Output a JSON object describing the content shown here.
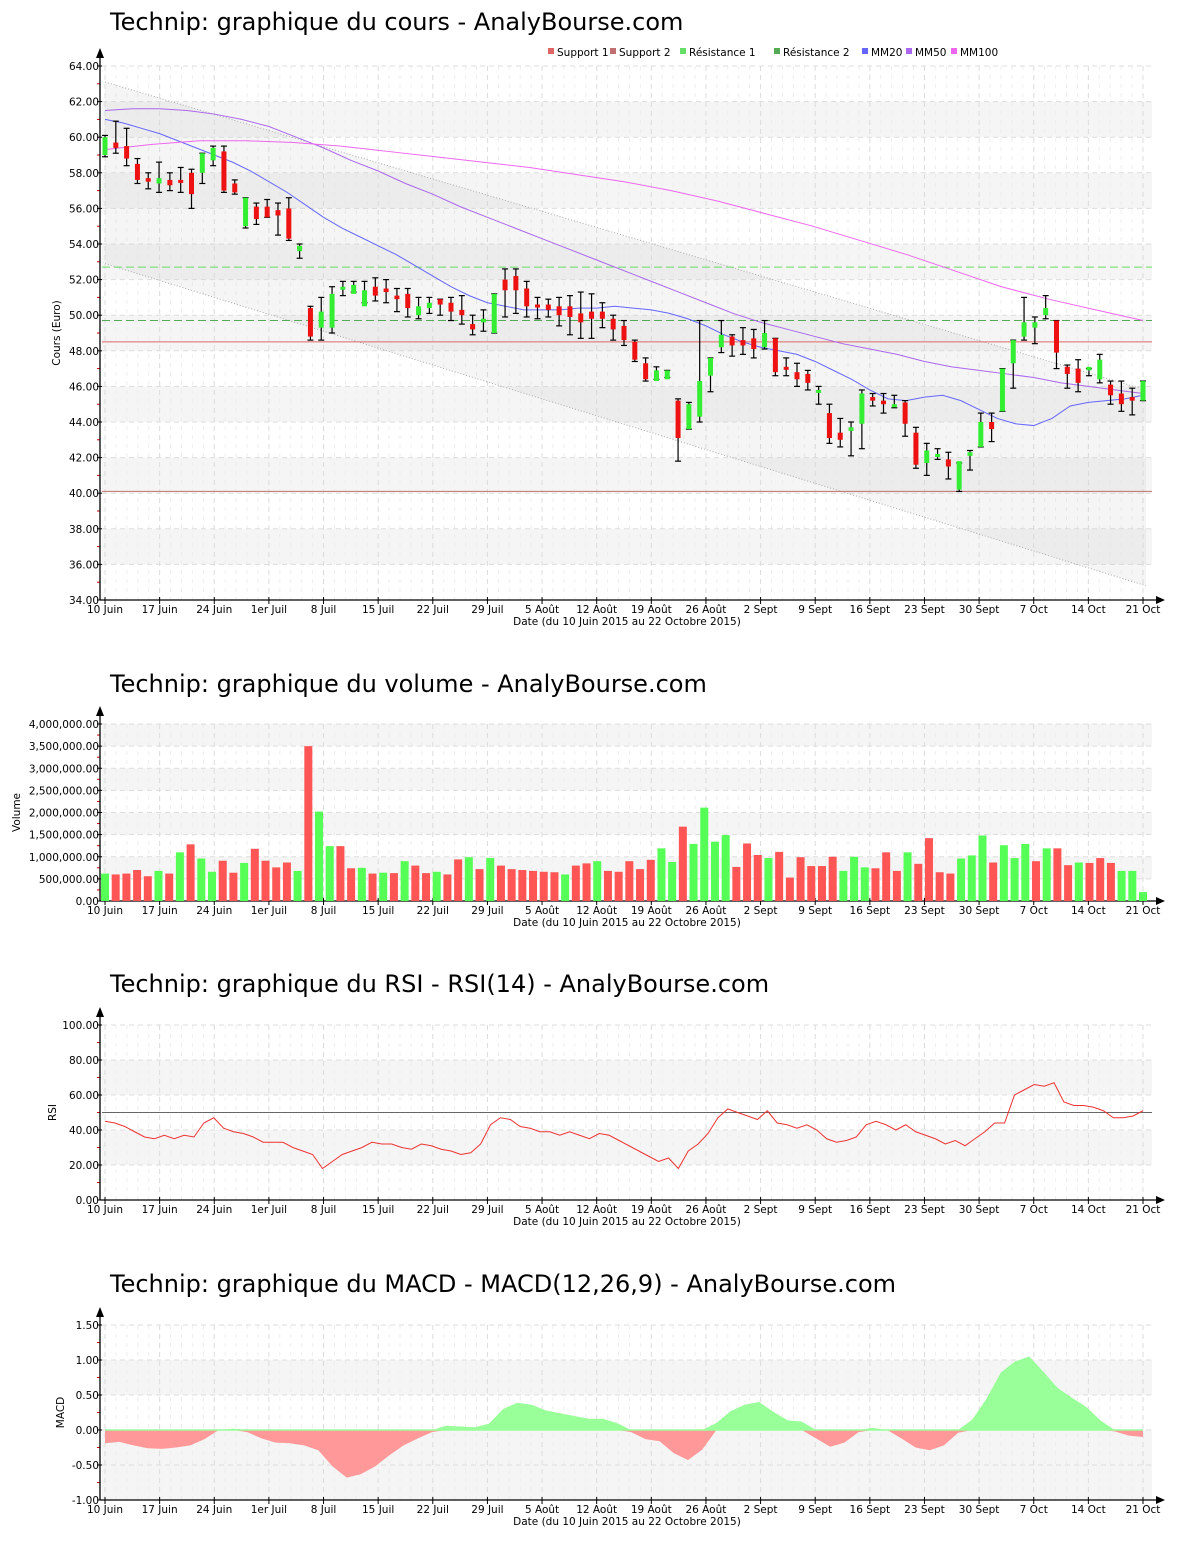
{
  "price_title": "Technip: graphique du cours - AnalyBourse.com",
  "volume_title": "Technip: graphique du volume - AnalyBourse.com",
  "rsi_title": "Technip: graphique du RSI - RSI(14) - AnalyBourse.com",
  "macd_title": "Technip: graphique du MACD - MACD(12,26,9) - AnalyBourse.com",
  "x_axis_label": "Date (du 10 Juin 2015 au 22 Octobre 2015)",
  "x_ticks": [
    "10 Juin",
    "17 Juin",
    "24 Juin",
    "1er Juil",
    "8 Juil",
    "15 Juil",
    "22 Juil",
    "29 Juil",
    "5 Août",
    "12 Août",
    "19 Août",
    "26 Août",
    "2 Sept",
    "9 Sept",
    "16 Sept",
    "23 Sept",
    "30 Sept",
    "7 Oct",
    "14 Oct",
    "21 Oct"
  ],
  "colors": {
    "up": "#33ee33",
    "down": "#ee1111",
    "vol_up": "#55ff55",
    "vol_down": "#ff5555",
    "support1": "#e06666",
    "support2": "#c07070",
    "resistance1": "#66dd66",
    "resistance2": "#55aa55",
    "mm20": "#6666ff",
    "mm50": "#aa66ee",
    "mm100": "#ee66ee",
    "rsi_line": "#ee3333",
    "macd_pos": "#99ff99",
    "macd_neg": "#ff9999"
  },
  "chart_data": [
    {
      "type": "candlestick",
      "title": "Technip: graphique du cours - AnalyBourse.com",
      "xlabel": "Date (du 10 Juin 2015 au 22 Octobre 2015)",
      "ylabel": "Cours (Euro)",
      "ylim": [
        34,
        64
      ],
      "yticks": [
        "64.00",
        "62.00",
        "60.00",
        "58.00",
        "56.00",
        "54.00",
        "52.00",
        "50.00",
        "48.00",
        "46.00",
        "44.00",
        "42.00",
        "40.00",
        "38.00",
        "36.00",
        "34.00"
      ],
      "legend": [
        "Support 1",
        "Support 2",
        "Résistance 1",
        "Résistance 2",
        "MM20",
        "MM50",
        "MM100"
      ],
      "levels": {
        "support1": 48.5,
        "support2": 40.1,
        "resistance1": 52.7,
        "resistance2": 49.7
      },
      "trend_channel": {
        "upper": [
          63.1,
          45.8
        ],
        "lower": [
          52.9,
          34.8
        ]
      },
      "candles": [
        [
          59.0,
          60.1,
          58.9,
          60.0
        ],
        [
          59.7,
          60.9,
          59.1,
          59.4
        ],
        [
          59.5,
          60.5,
          58.4,
          58.8
        ],
        [
          58.5,
          58.8,
          57.4,
          57.6
        ],
        [
          57.7,
          58.0,
          57.1,
          57.5
        ],
        [
          57.4,
          58.6,
          56.9,
          57.7
        ],
        [
          57.6,
          58.0,
          57.0,
          57.3
        ],
        [
          57.6,
          58.3,
          56.9,
          57.5
        ],
        [
          58.0,
          58.2,
          56.0,
          56.8
        ],
        [
          58.0,
          59.1,
          57.4,
          59.1
        ],
        [
          58.7,
          59.5,
          58.4,
          59.4
        ],
        [
          59.2,
          59.5,
          56.9,
          57.0
        ],
        [
          57.4,
          57.6,
          56.8,
          56.9
        ],
        [
          55.0,
          56.6,
          54.9,
          56.6
        ],
        [
          56.1,
          56.3,
          55.1,
          55.4
        ],
        [
          56.1,
          56.5,
          55.5,
          55.5
        ],
        [
          55.9,
          56.3,
          54.5,
          55.6
        ],
        [
          56.0,
          56.6,
          54.2,
          54.3
        ],
        [
          53.6,
          54.0,
          53.2,
          53.9
        ],
        [
          50.4,
          50.5,
          48.6,
          48.8
        ],
        [
          49.3,
          51.0,
          48.6,
          50.2
        ],
        [
          49.3,
          51.6,
          49.0,
          51.2
        ],
        [
          51.5,
          51.9,
          51.1,
          51.6
        ],
        [
          51.2,
          51.9,
          51.3,
          51.7
        ],
        [
          50.5,
          51.9,
          50.7,
          51.4
        ],
        [
          51.6,
          52.1,
          50.8,
          51.1
        ],
        [
          51.5,
          52.0,
          50.7,
          51.3
        ],
        [
          51.1,
          51.5,
          50.2,
          50.9
        ],
        [
          51.2,
          51.5,
          49.9,
          50.4
        ],
        [
          50.0,
          51.0,
          49.8,
          50.5
        ],
        [
          50.4,
          51.0,
          50.1,
          50.7
        ],
        [
          50.9,
          50.9,
          50.0,
          50.6
        ],
        [
          50.7,
          51.0,
          49.7,
          50.2
        ],
        [
          50.3,
          51.1,
          49.5,
          50.0
        ],
        [
          49.5,
          50.0,
          48.9,
          49.2
        ],
        [
          49.6,
          50.3,
          49.1,
          49.8
        ],
        [
          49.0,
          51.2,
          49.0,
          51.2
        ],
        [
          52.0,
          52.6,
          49.9,
          51.4
        ],
        [
          52.2,
          52.6,
          50.1,
          51.4
        ],
        [
          51.5,
          51.9,
          49.9,
          50.5
        ],
        [
          50.6,
          51.0,
          49.8,
          50.5
        ],
        [
          50.6,
          50.9,
          49.9,
          50.3
        ],
        [
          50.5,
          51.0,
          49.4,
          50.0
        ],
        [
          50.5,
          51.1,
          48.9,
          49.9
        ],
        [
          50.1,
          51.3,
          48.7,
          49.6
        ],
        [
          50.2,
          51.2,
          48.7,
          49.8
        ],
        [
          50.2,
          50.7,
          49.3,
          49.8
        ],
        [
          49.8,
          50.0,
          48.6,
          49.2
        ],
        [
          49.4,
          49.7,
          48.3,
          48.6
        ],
        [
          48.5,
          48.6,
          47.4,
          47.5
        ],
        [
          47.3,
          47.6,
          46.3,
          46.4
        ],
        [
          46.3,
          47.1,
          46.4,
          46.9
        ],
        [
          46.4,
          46.9,
          46.5,
          46.9
        ],
        [
          45.2,
          45.3,
          41.8,
          43.1
        ],
        [
          43.6,
          45.1,
          43.6,
          45.0
        ],
        [
          44.3,
          49.7,
          44.0,
          46.3
        ],
        [
          46.6,
          47.6,
          45.7,
          47.6
        ],
        [
          48.2,
          49.7,
          47.9,
          48.9
        ],
        [
          48.8,
          48.9,
          47.7,
          48.3
        ],
        [
          48.6,
          49.3,
          47.8,
          48.3
        ],
        [
          48.7,
          49.2,
          47.6,
          48.1
        ],
        [
          48.2,
          49.7,
          48.1,
          49.0
        ],
        [
          48.7,
          48.7,
          46.6,
          46.8
        ],
        [
          47.1,
          47.6,
          46.6,
          47.0
        ],
        [
          46.8,
          47.3,
          46.0,
          46.4
        ],
        [
          46.7,
          46.9,
          45.8,
          46.2
        ],
        [
          45.8,
          46.0,
          45.0,
          45.8
        ],
        [
          44.5,
          45.0,
          42.8,
          43.1
        ],
        [
          43.4,
          44.2,
          42.6,
          43.0
        ],
        [
          43.5,
          44.0,
          42.1,
          43.7
        ],
        [
          43.9,
          45.8,
          42.5,
          45.6
        ],
        [
          45.4,
          45.6,
          44.9,
          45.2
        ],
        [
          45.2,
          45.6,
          44.5,
          45.0
        ],
        [
          44.9,
          45.5,
          44.8,
          45.0
        ],
        [
          45.1,
          45.2,
          43.2,
          43.9
        ],
        [
          43.4,
          43.7,
          41.4,
          41.6
        ],
        [
          41.7,
          42.8,
          41.0,
          42.4
        ],
        [
          42.1,
          42.5,
          41.9,
          42.2
        ],
        [
          41.9,
          42.3,
          40.8,
          41.5
        ],
        [
          40.2,
          41.7,
          40.1,
          41.8
        ],
        [
          42.1,
          42.4,
          41.3,
          42.3
        ],
        [
          42.6,
          44.5,
          42.6,
          44.0
        ],
        [
          44.0,
          44.5,
          42.9,
          43.6
        ],
        [
          44.6,
          47.0,
          44.6,
          47.0
        ],
        [
          47.3,
          48.6,
          45.9,
          48.6
        ],
        [
          48.8,
          51.0,
          48.6,
          49.6
        ],
        [
          49.3,
          49.9,
          48.4,
          49.6
        ],
        [
          50.0,
          51.1,
          49.8,
          50.4
        ],
        [
          49.7,
          49.7,
          47.0,
          47.9
        ],
        [
          47.1,
          47.2,
          45.9,
          46.7
        ],
        [
          47.0,
          47.5,
          45.7,
          46.2
        ],
        [
          46.9,
          47.0,
          46.6,
          47.1
        ],
        [
          46.4,
          47.8,
          46.2,
          47.5
        ],
        [
          46.1,
          46.3,
          45.0,
          45.5
        ],
        [
          45.6,
          46.3,
          44.6,
          45.0
        ],
        [
          45.4,
          45.9,
          44.4,
          45.2
        ],
        [
          45.2,
          46.3,
          45.2,
          46.3
        ]
      ],
      "series": [
        {
          "name": "MM20",
          "values": [
            61.0,
            60.8,
            60.5,
            60.2,
            59.8,
            59.4,
            59.0,
            58.6,
            58.1,
            57.5,
            56.9,
            56.2,
            55.5,
            54.9,
            54.4,
            53.9,
            53.4,
            52.8,
            52.2,
            51.6,
            51.1,
            50.7,
            50.5,
            50.3,
            50.3,
            50.3,
            50.4,
            50.4,
            50.5,
            50.4,
            50.3,
            50.1,
            49.8,
            49.4,
            48.9,
            48.5,
            48.2,
            48.0,
            47.8,
            47.4,
            46.9,
            46.4,
            45.8,
            45.3,
            45.2,
            45.4,
            45.5,
            45.2,
            44.7,
            44.2,
            43.9,
            43.8,
            44.2,
            44.9,
            45.1,
            45.2,
            45.3,
            45.5
          ]
        },
        {
          "name": "MM50",
          "values": [
            61.5,
            61.6,
            61.6,
            61.5,
            61.3,
            61.0,
            60.6,
            60.0,
            59.4,
            58.7,
            58.1,
            57.4,
            56.8,
            56.1,
            55.5,
            54.9,
            54.3,
            53.7,
            53.1,
            52.5,
            51.9,
            51.3,
            50.7,
            50.1,
            49.6,
            49.2,
            48.8,
            48.4,
            48.1,
            47.8,
            47.4,
            47.1,
            46.9,
            46.7,
            46.5,
            46.2,
            46.0,
            45.8,
            45.6
          ]
        },
        {
          "name": "MM100",
          "values": [
            59.3,
            59.6,
            59.8,
            59.8,
            59.7,
            59.5,
            59.2,
            58.9,
            58.6,
            58.3,
            57.9,
            57.5,
            57.0,
            56.4,
            55.7,
            55.0,
            54.2,
            53.4,
            52.5,
            51.6,
            50.9,
            50.3,
            49.7
          ]
        }
      ]
    },
    {
      "type": "bar",
      "title": "Technip: graphique du volume - AnalyBourse.com",
      "xlabel": "Date (du 10 Juin 2015 au 22 Octobre 2015)",
      "ylabel": "Volume",
      "ylim": [
        0,
        4000000
      ],
      "yticks": [
        "4,000,000.00",
        "3,500,000.00",
        "3,000,000.00",
        "2,500,000.00",
        "2,000,000.00",
        "1,500,000.00",
        "1,000,000.00",
        "500,000.00",
        "0.00"
      ],
      "values": [
        620000,
        600000,
        620000,
        700000,
        560000,
        680000,
        620000,
        1100000,
        1280000,
        960000,
        660000,
        910000,
        640000,
        860000,
        1180000,
        910000,
        760000,
        870000,
        680000,
        3500000,
        2020000,
        1240000,
        1240000,
        740000,
        750000,
        620000,
        640000,
        630000,
        900000,
        800000,
        630000,
        660000,
        600000,
        940000,
        990000,
        720000,
        970000,
        800000,
        720000,
        700000,
        680000,
        660000,
        650000,
        600000,
        800000,
        850000,
        900000,
        680000,
        660000,
        900000,
        720000,
        930000,
        1190000,
        880000,
        1680000,
        1290000,
        2110000,
        1340000,
        1490000,
        770000,
        1300000,
        1040000,
        970000,
        1110000,
        530000,
        990000,
        790000,
        790000,
        1000000,
        680000,
        1000000,
        760000,
        740000,
        1100000,
        680000,
        1100000,
        840000,
        1420000,
        650000,
        620000,
        960000,
        1030000,
        1480000,
        870000,
        1260000,
        970000,
        1290000,
        900000,
        1190000,
        1190000,
        810000,
        870000,
        860000,
        970000,
        860000,
        680000,
        680000,
        200000
      ],
      "colors_up": [
        true,
        false,
        false,
        false,
        false,
        true,
        false,
        true,
        false,
        true,
        true,
        false,
        false,
        true,
        false,
        false,
        false,
        false,
        true,
        false,
        true,
        true,
        false,
        false,
        true,
        false,
        true,
        false,
        true,
        false,
        false,
        true,
        false,
        false,
        true,
        false,
        true,
        false,
        false,
        false,
        false,
        false,
        false,
        true,
        false,
        false,
        true,
        false,
        false,
        false,
        false,
        false,
        true,
        true,
        false,
        true,
        true,
        true,
        true,
        false,
        false,
        false,
        true,
        false,
        false,
        false,
        false,
        false,
        false,
        true,
        true,
        true,
        false,
        false,
        false,
        true,
        false,
        false,
        false,
        false,
        true,
        true,
        true,
        false,
        true,
        true,
        true,
        false,
        true,
        false,
        false,
        true,
        false,
        false,
        false,
        true,
        true,
        true
      ]
    },
    {
      "type": "line",
      "title": "Technip: graphique du RSI - RSI(14) - AnalyBourse.com",
      "xlabel": "Date (du 10 Juin 2015 au 22 Octobre 2015)",
      "ylabel": "RSI",
      "ylim": [
        0,
        100
      ],
      "yticks": [
        "100.00",
        "80.00",
        "60.00",
        "40.00",
        "20.00",
        "0.00"
      ],
      "reference_line": 50,
      "values": [
        45,
        44,
        42,
        39,
        36,
        35,
        37,
        35,
        37,
        36,
        44,
        47,
        41,
        39,
        38,
        36,
        33,
        33,
        33,
        30,
        28,
        26,
        18,
        22,
        26,
        28,
        30,
        33,
        32,
        32,
        30,
        29,
        32,
        31,
        29,
        28,
        26,
        27,
        32,
        43,
        47,
        46,
        42,
        41,
        39,
        39,
        37,
        39,
        37,
        35,
        38,
        37,
        34,
        31,
        28,
        25,
        22,
        24,
        18,
        28,
        32,
        38,
        47,
        52,
        50,
        48,
        46,
        51,
        44,
        43,
        41,
        43,
        40,
        35,
        33,
        34,
        36,
        43,
        45,
        43,
        40,
        43,
        39,
        37,
        35,
        32,
        34,
        31,
        35,
        39,
        44,
        44,
        60,
        63,
        66,
        65,
        67,
        56,
        54,
        54,
        53,
        51,
        47,
        47,
        48,
        51
      ]
    },
    {
      "type": "area",
      "title": "Technip: graphique du MACD - MACD(12,26,9) - AnalyBourse.com",
      "xlabel": "Date (du 10 Juin 2015 au 22 Octobre 2015)",
      "ylabel": "MACD",
      "ylim": [
        -1.0,
        1.5
      ],
      "yticks": [
        "1.50",
        "1.00",
        "0.50",
        "0.00",
        "-0.50",
        "-1.00"
      ],
      "values": [
        -0.19,
        -0.17,
        -0.22,
        -0.26,
        -0.27,
        -0.25,
        -0.22,
        -0.13,
        0.0,
        0.02,
        -0.03,
        -0.12,
        -0.18,
        -0.19,
        -0.22,
        -0.29,
        -0.52,
        -0.68,
        -0.63,
        -0.52,
        -0.36,
        -0.22,
        -0.12,
        -0.03,
        0.06,
        0.05,
        0.04,
        0.09,
        0.3,
        0.39,
        0.36,
        0.28,
        0.24,
        0.2,
        0.16,
        0.16,
        0.1,
        -0.03,
        -0.13,
        -0.16,
        -0.33,
        -0.43,
        -0.28,
        0.1,
        0.27,
        0.36,
        0.4,
        0.26,
        0.14,
        0.12,
        -0.12,
        -0.24,
        -0.18,
        -0.03,
        0.03,
        0.0,
        -0.12,
        -0.25,
        -0.29,
        -0.22,
        -0.04,
        0.15,
        0.45,
        0.82,
        0.98,
        1.05,
        0.83,
        0.6,
        0.46,
        0.33,
        0.14,
        -0.02,
        -0.08,
        -0.1
      ]
    }
  ]
}
